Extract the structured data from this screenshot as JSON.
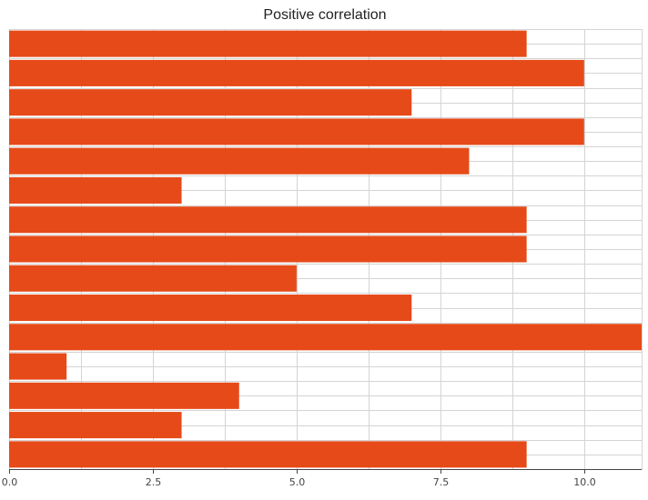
{
  "chart_data": {
    "type": "bar",
    "orientation": "horizontal",
    "title": "Positive correlation",
    "xlabel": "",
    "ylabel": "",
    "values": [
      9,
      10,
      7,
      10,
      8,
      3,
      9,
      9,
      5,
      7,
      11,
      1,
      4,
      3,
      9
    ],
    "xlim": [
      0,
      11
    ],
    "x_ticks": [
      0,
      2.5,
      5,
      7.5,
      10
    ],
    "x_tick_labels": [
      "0.0",
      "2.5",
      "5.0",
      "7.5",
      "10.0"
    ],
    "grid": true,
    "bar_color": "#e64a19",
    "legend": "none"
  }
}
